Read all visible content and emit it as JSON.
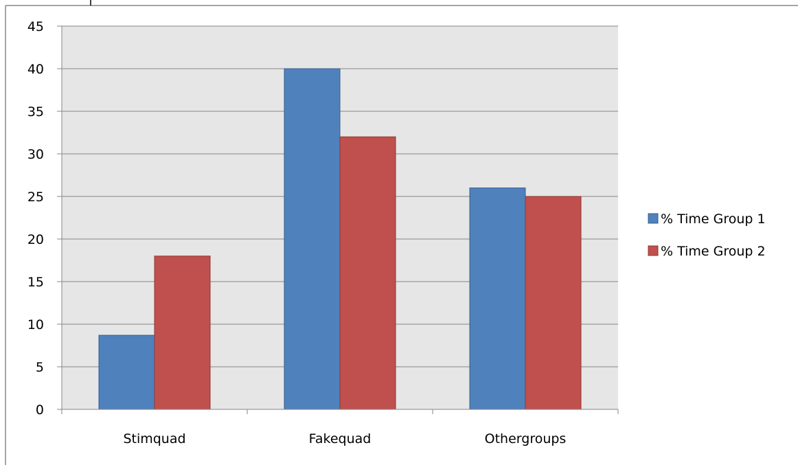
{
  "chart_data": {
    "type": "bar",
    "title": "",
    "xlabel": "",
    "ylabel": "",
    "categories": [
      "Stimquad",
      "Fakequad",
      "Othergroups"
    ],
    "series": [
      {
        "name": "% Time Group 1",
        "values": [
          8.7,
          40,
          26
        ],
        "color": "#4F81BD"
      },
      {
        "name": "% Time Group 2",
        "values": [
          18,
          32,
          25
        ],
        "color": "#C0504D"
      }
    ],
    "ylim": [
      0,
      45
    ],
    "yticks": [
      0,
      5,
      10,
      15,
      20,
      25,
      30,
      35,
      40,
      45
    ],
    "grid": true,
    "legend_position": "right",
    "plot_background": "#E6E6E6",
    "gridline_color": "#868686"
  }
}
